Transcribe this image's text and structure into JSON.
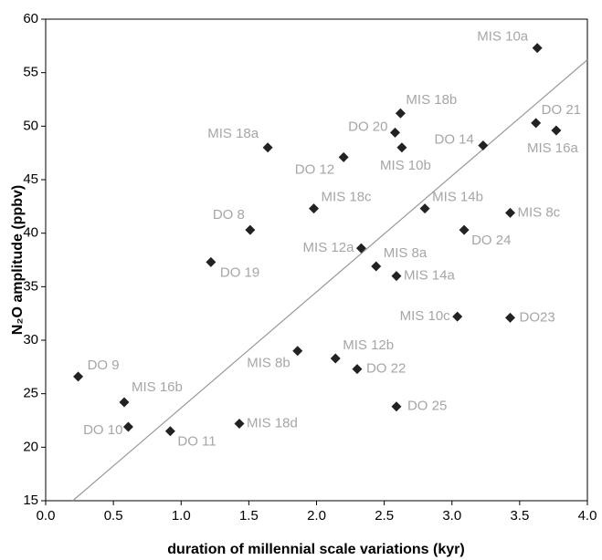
{
  "chart_data": {
    "type": "scatter",
    "xlabel": "duration of millennial scale variations (kyr)",
    "ylabel": "N₂O amplitude (ppbv)",
    "xlim": [
      0,
      4
    ],
    "ylim": [
      15,
      60
    ],
    "xticks": [
      {
        "value": 0,
        "label": "0.0"
      },
      0.5,
      {
        "value": 1,
        "label": "1.0"
      },
      1.5,
      {
        "value": 2,
        "label": "2.0"
      },
      2.5,
      {
        "value": 3,
        "label": "3.0"
      },
      3.5,
      {
        "value": 4,
        "label": "4.0"
      }
    ],
    "yticks": [
      15,
      20,
      25,
      30,
      35,
      40,
      45,
      50,
      55,
      60
    ],
    "color": "#222222",
    "label_color": "#a6a6a6",
    "labels": [
      "MIS 10a",
      "DO 21",
      "MIS 16a",
      "MIS 18b",
      "DO 20",
      "MIS 10b",
      "DO 14",
      "MIS 18a",
      "DO 12",
      "MIS 18c",
      "MIS 14b",
      "MIS 8c",
      "DO 8",
      "DO 24",
      "MIS 12a",
      "DO 19",
      "MIS 8a",
      "MIS 14a",
      "MIS 10c",
      "DO23",
      "MIS 8b",
      "MIS 12b",
      "DO 22",
      "DO 9",
      "MIS 16b",
      "DO 25",
      "DO 10",
      "DO 11",
      "MIS 18d"
    ],
    "x": [
      3.63,
      3.62,
      3.77,
      2.62,
      2.58,
      2.63,
      3.23,
      1.64,
      2.2,
      1.98,
      2.8,
      3.43,
      1.51,
      3.09,
      2.33,
      1.22,
      2.44,
      2.59,
      3.04,
      3.43,
      1.86,
      2.14,
      2.3,
      0.24,
      0.58,
      2.59,
      0.61,
      0.92,
      1.43
    ],
    "values": [
      57.3,
      50.3,
      49.6,
      51.2,
      49.4,
      48.0,
      48.2,
      48.0,
      47.1,
      42.3,
      42.3,
      41.9,
      40.3,
      40.3,
      38.6,
      37.3,
      36.9,
      36.0,
      32.2,
      32.1,
      29.0,
      28.3,
      27.3,
      26.6,
      24.2,
      23.8,
      21.9,
      21.5,
      22.2
    ],
    "trend_line": {
      "x": [
        0.2,
        4.0
      ],
      "y": [
        15,
        56.2
      ],
      "color": "#999999"
    }
  }
}
